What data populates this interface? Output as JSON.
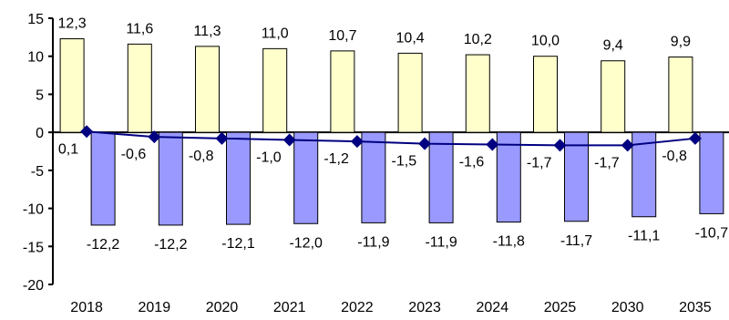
{
  "chart_data": {
    "type": "bar",
    "categories": [
      "2018",
      "2019",
      "2020",
      "2021",
      "2022",
      "2023",
      "2024",
      "2025",
      "2030",
      "2035"
    ],
    "series": [
      {
        "type": "bar",
        "values": [
          12.3,
          11.6,
          11.3,
          11.0,
          10.7,
          10.4,
          10.2,
          10.0,
          9.4,
          9.9
        ],
        "labels": [
          "12,3",
          "11,6",
          "11,3",
          "11,0",
          "10,7",
          "10,4",
          "10,2",
          "10,0",
          "9,4",
          "9,9"
        ],
        "color": "#ffffcc"
      },
      {
        "type": "bar",
        "values": [
          -12.2,
          -12.2,
          -12.1,
          -12.0,
          -11.9,
          -11.9,
          -11.8,
          -11.7,
          -11.1,
          -10.7
        ],
        "labels": [
          "-12,2",
          "-12,2",
          "-12,1",
          "-12,0",
          "-11,9",
          "-11,9",
          "-11,8",
          "-11,7",
          "-11,1",
          "-10,7"
        ],
        "color": "#9999ff"
      },
      {
        "type": "line",
        "values": [
          0.1,
          -0.6,
          -0.8,
          -1.0,
          -1.2,
          -1.5,
          -1.6,
          -1.7,
          -1.7,
          -0.8
        ],
        "labels": [
          "0,1",
          "-0,6",
          "-0,8",
          "-1,0",
          "-1,2",
          "-1,5",
          "-1,6",
          "-1,7",
          "-1,7",
          "-0,8"
        ],
        "color": "#000080"
      }
    ],
    "yticks": [
      15,
      10,
      5,
      0,
      -5,
      -10,
      -15,
      -20
    ],
    "ylim": [
      -20,
      15
    ],
    "grid": false,
    "legend": "none"
  }
}
